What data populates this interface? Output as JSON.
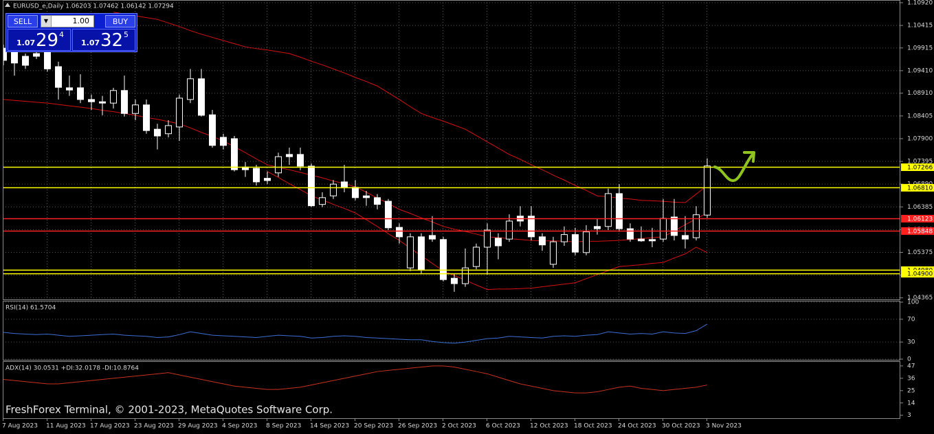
{
  "header": "EURUSD_e,Daily  1.06203 1.07462 1.06142 1.07294",
  "trade_panel": {
    "sell": "SELL",
    "lots": "1.00",
    "buy": "BUY",
    "sell_price": {
      "big": "1.07",
      "main": "29",
      "pip": "4"
    },
    "buy_price": {
      "big": "1.07",
      "main": "32",
      "pip": "5"
    }
  },
  "footer": "FreshForex Terminal, © 2001-2023, MetaQuotes Software Corp.",
  "chart_data": [
    {
      "type": "candlestick",
      "categories": [
        "7 Aug 2023",
        null,
        null,
        null,
        "11 Aug 2023",
        null,
        null,
        null,
        "17 Aug 2023",
        null,
        null,
        null,
        "23 Aug 2023",
        null,
        null,
        null,
        "29 Aug 2023",
        null,
        null,
        null,
        "4 Sep 2023",
        null,
        null,
        null,
        "8 Sep 2023",
        null,
        null,
        null,
        "14 Sep 2023",
        null,
        null,
        null,
        "20 Sep 2023",
        null,
        null,
        null,
        "26 Sep 2023",
        null,
        null,
        null,
        "2 Oct 2023",
        null,
        null,
        null,
        "6 Oct 2023",
        null,
        null,
        null,
        "12 Oct 2023",
        null,
        null,
        null,
        "18 Oct 2023",
        null,
        null,
        null,
        "24 Oct 2023",
        null,
        null,
        null,
        "30 Oct 2023",
        null,
        null,
        null,
        "3 Nov 2023"
      ],
      "ohlc": [
        [
          1.0991,
          1.0999,
          1.0953,
          1.0964
        ],
        [
          1.0984,
          1.0991,
          1.093,
          1.0958
        ],
        [
          1.0973,
          1.0979,
          1.0945,
          1.0953
        ],
        [
          1.0979,
          1.0985,
          1.0967,
          1.0973
        ],
        [
          1.0984,
          1.0991,
          1.0939,
          1.0945
        ],
        [
          1.095,
          1.0961,
          1.0877,
          1.0904
        ],
        [
          1.0903,
          1.093,
          1.0885,
          1.0898
        ],
        [
          1.0903,
          1.0933,
          1.0869,
          1.0877
        ],
        [
          1.0877,
          1.0888,
          1.0854,
          1.0872
        ],
        [
          1.0872,
          1.0885,
          1.0842,
          1.0869
        ],
        [
          1.0869,
          1.0903,
          1.0857,
          1.0897
        ],
        [
          1.0897,
          1.093,
          1.0839,
          1.0846
        ],
        [
          1.0846,
          1.0877,
          1.0831,
          1.0865
        ],
        [
          1.0865,
          1.0877,
          1.0801,
          1.0808
        ],
        [
          1.0811,
          1.0823,
          1.0766,
          1.0796
        ],
        [
          1.0801,
          1.0831,
          1.0793,
          1.0819
        ],
        [
          1.0816,
          1.0888,
          1.0785,
          1.088
        ],
        [
          1.0877,
          1.0945,
          1.0869,
          1.0923
        ],
        [
          1.0923,
          1.0945,
          1.0839,
          1.0842
        ],
        [
          1.0843,
          1.0854,
          1.077,
          1.0775
        ],
        [
          1.0793,
          1.0801,
          1.0766,
          1.0775
        ],
        [
          1.079,
          1.0796,
          1.0717,
          1.0721
        ],
        [
          1.0727,
          1.0738,
          1.0705,
          1.0721
        ],
        [
          1.0724,
          1.0732,
          1.0686,
          1.0694
        ],
        [
          1.0702,
          1.0717,
          1.0689,
          1.0697
        ],
        [
          1.0714,
          1.0759,
          1.0705,
          1.075
        ],
        [
          1.0755,
          1.077,
          1.0732,
          1.075
        ],
        [
          1.0755,
          1.077,
          1.072,
          1.0729
        ],
        [
          1.0729,
          1.0735,
          1.0638,
          1.0641
        ],
        [
          1.0644,
          1.0671,
          1.0638,
          1.0659
        ],
        [
          1.0663,
          1.0698,
          1.0656,
          1.0689
        ],
        [
          1.0694,
          1.0732,
          1.0671,
          1.0683
        ],
        [
          1.0682,
          1.0698,
          1.0653,
          1.0659
        ],
        [
          1.0663,
          1.0674,
          1.0641,
          1.0659
        ],
        [
          1.0659,
          1.0667,
          1.0633,
          1.0644
        ],
        [
          1.0651,
          1.0656,
          1.0587,
          1.0592
        ],
        [
          1.0593,
          1.0602,
          1.0557,
          1.0572
        ],
        [
          1.0503,
          1.058,
          1.0496,
          1.0572
        ],
        [
          1.0572,
          1.058,
          1.0491,
          1.0499
        ],
        [
          1.0575,
          1.0618,
          1.0561,
          1.0567
        ],
        [
          1.0566,
          1.0572,
          1.0473,
          1.0477
        ],
        [
          1.048,
          1.0491,
          1.045,
          1.0468
        ],
        [
          1.0468,
          1.0546,
          1.0461,
          1.0503
        ],
        [
          1.0506,
          1.0557,
          1.05,
          1.0549
        ],
        [
          1.0549,
          1.0602,
          1.0488,
          1.0587
        ],
        [
          1.0569,
          1.058,
          1.0522,
          1.0552
        ],
        [
          1.0567,
          1.0622,
          1.0561,
          1.0607
        ],
        [
          1.0618,
          1.064,
          1.0595,
          1.0607
        ],
        [
          1.0618,
          1.064,
          1.0564,
          1.0572
        ],
        [
          1.0572,
          1.058,
          1.0541,
          1.0554
        ],
        [
          1.0511,
          1.0572,
          1.0503,
          1.0561
        ],
        [
          1.0561,
          1.0595,
          1.0552,
          1.0577
        ],
        [
          1.0577,
          1.0592,
          1.0531,
          1.0538
        ],
        [
          1.0537,
          1.0598,
          1.0531,
          1.0583
        ],
        [
          1.0595,
          1.0613,
          1.0577,
          1.059
        ],
        [
          1.0595,
          1.0679,
          1.0587,
          1.0668
        ],
        [
          1.0668,
          1.0689,
          1.0583,
          1.059
        ],
        [
          1.059,
          1.0602,
          1.0561,
          1.0567
        ],
        [
          1.0567,
          1.0595,
          1.0561,
          1.0563
        ],
        [
          1.0566,
          1.0592,
          1.0549,
          1.0563
        ],
        [
          1.0567,
          1.0656,
          1.0561,
          1.0613
        ],
        [
          1.0616,
          1.0656,
          1.0564,
          1.0575
        ],
        [
          1.0575,
          1.0618,
          1.0546,
          1.0567
        ],
        [
          1.057,
          1.064,
          1.0564,
          1.0621
        ],
        [
          1.06203,
          1.07462,
          1.06142,
          1.07294
        ]
      ],
      "bull_color": "#000000",
      "bear_color": "#ffffff",
      "wick_color": "#ffffff",
      "ylim": [
        1.0433,
        1.1098
      ],
      "yticks": [
        {
          "value": 1.1092,
          "label": "1.10920"
        },
        {
          "value": 1.10415,
          "label": "1.10415"
        },
        1.09915,
        {
          "value": 1.0941,
          "label": "1.09410"
        },
        {
          "value": 1.0891,
          "label": "1.08910"
        },
        1.08405,
        {
          "value": 1.079,
          "label": "1.07900"
        },
        1.07395,
        {
          "value": 1.0689,
          "label": "1.06890"
        },
        1.06385,
        {
          "value": 1.0588,
          "label": "1.05880"
        },
        1.05375,
        {
          "value": 1.0487,
          "label": "1.04870"
        },
        1.04365
      ],
      "grid": true,
      "levels": [
        {
          "value": 1.07266,
          "color": "#ffff00"
        },
        {
          "value": 1.0681,
          "label": "1.06810",
          "color": "#ffff00"
        },
        {
          "value": 1.06123,
          "color": "#ff2020"
        },
        {
          "value": 1.05848,
          "color": "#ff2020"
        },
        {
          "value": 1.0498,
          "label": "1.04980",
          "color": "#ffff00"
        },
        {
          "value": 1.049,
          "label": "1.04900",
          "color": "#ffff00"
        }
      ],
      "bands": [
        {
          "color": "#d81010",
          "values": [
            null,
            null,
            null,
            null,
            null,
            null,
            null,
            null,
            null,
            null,
            1.1071,
            1.1067,
            1.1063,
            1.1059,
            1.1055,
            1.1047,
            1.1039,
            1.103,
            1.1022,
            1.1015,
            1.1008,
            1.1001,
            1.0994,
            1.099,
            1.0987,
            1.0983,
            1.0979,
            1.0971,
            1.0962,
            1.0954,
            1.0945,
            1.0936,
            1.0926,
            1.0917,
            1.0907,
            1.0892,
            1.0877,
            1.0861,
            1.0846,
            1.0837,
            1.0829,
            1.082,
            1.0811,
            1.0797,
            1.0783,
            1.0769,
            1.0755,
            1.0744,
            1.0732,
            1.0721,
            1.0709,
            1.0698,
            1.0686,
            1.0675,
            1.0663,
            1.0661,
            1.0658,
            1.0656,
            1.0653,
            1.0652,
            1.0651,
            1.0649,
            1.0648,
            1.0667,
            1.0686
          ]
        },
        {
          "color": "#d81010",
          "values": [
            1.0877,
            1.0875,
            1.0873,
            1.0871,
            1.0869,
            1.0866,
            1.0863,
            1.086,
            1.0857,
            1.0853,
            1.085,
            1.0846,
            1.0842,
            1.0837,
            1.0833,
            1.0828,
            1.0823,
            1.0814,
            1.0804,
            1.0795,
            1.0785,
            1.0772,
            1.0759,
            1.0745,
            1.0732,
            1.0726,
            1.0721,
            1.0715,
            1.0709,
            1.0703,
            1.0696,
            1.069,
            1.0683,
            1.0671,
            1.0658,
            1.0646,
            1.0633,
            1.0624,
            1.0614,
            1.0605,
            1.0595,
            1.0589,
            1.0584,
            1.0578,
            1.0572,
            1.057,
            1.0568,
            1.0566,
            1.0564,
            1.0563,
            1.0563,
            1.0562,
            1.0561,
            1.0562,
            1.0562,
            1.0563,
            1.0564,
            1.0566,
            1.0568,
            1.057,
            1.0572,
            1.0585,
            1.0599,
            1.0612,
            1.0625
          ]
        },
        {
          "color": "#d81010",
          "values": [
            null,
            null,
            null,
            null,
            null,
            null,
            null,
            null,
            null,
            null,
            null,
            null,
            null,
            null,
            null,
            null,
            null,
            null,
            null,
            null,
            null,
            null,
            null,
            null,
            1.0717,
            1.0704,
            1.069,
            1.0677,
            1.0663,
            1.0654,
            1.0644,
            1.0635,
            1.0625,
            1.061,
            1.0595,
            1.0579,
            1.0564,
            1.0547,
            1.053,
            1.0513,
            1.0496,
            1.0486,
            1.0476,
            1.0465,
            1.0455,
            1.0456,
            1.0456,
            1.0457,
            1.0458,
            1.0461,
            1.0464,
            1.0467,
            1.047,
            1.0479,
            1.0488,
            1.0497,
            1.0506,
            1.0508,
            1.051,
            1.0513,
            1.0515,
            1.0525,
            1.0534,
            1.0549,
            1.0537
          ]
        }
      ]
    },
    {
      "type": "line",
      "label": "RSI(14) 61.5704",
      "ylim": [
        0,
        100
      ],
      "yticks": [
        0,
        30,
        70,
        100
      ],
      "grid": true,
      "series": [
        {
          "color": "#3b6fd6",
          "values": [
            47,
            45,
            44,
            43,
            44,
            42,
            40,
            41,
            42,
            43,
            44,
            42,
            41,
            40,
            38,
            39,
            43,
            48,
            45,
            42,
            41,
            40,
            39,
            38,
            40,
            42,
            41,
            40,
            37,
            38,
            40,
            41,
            40,
            38,
            37,
            36,
            35,
            34,
            34,
            31,
            29,
            28,
            30,
            33,
            36,
            37,
            40,
            39,
            38,
            37,
            40,
            41,
            40,
            42,
            43,
            48,
            46,
            44,
            45,
            44,
            48,
            46,
            45,
            50,
            61.5704
          ]
        }
      ]
    },
    {
      "type": "line",
      "label": "ADX(14) 30.0531 +DI:32.0178 -DI:10.8764",
      "ylim": [
        1,
        50
      ],
      "yticks": [
        3,
        14,
        25,
        36,
        47
      ],
      "grid": false,
      "series": [
        {
          "color": "#c8321e",
          "values": [
            35,
            34,
            33,
            32,
            31,
            31,
            32,
            33,
            34,
            35,
            36,
            37,
            38,
            39,
            40,
            41,
            39,
            37,
            35,
            33,
            31,
            29,
            28,
            27,
            26,
            26,
            27,
            28,
            30,
            32,
            34,
            36,
            38,
            40,
            42,
            43,
            44,
            45,
            46,
            47,
            47,
            46,
            44,
            42,
            40,
            37,
            34,
            31,
            29,
            27,
            25,
            24,
            23,
            23,
            24,
            26,
            28,
            29,
            27,
            26,
            25,
            26,
            27,
            28,
            30.0531
          ]
        }
      ]
    }
  ]
}
